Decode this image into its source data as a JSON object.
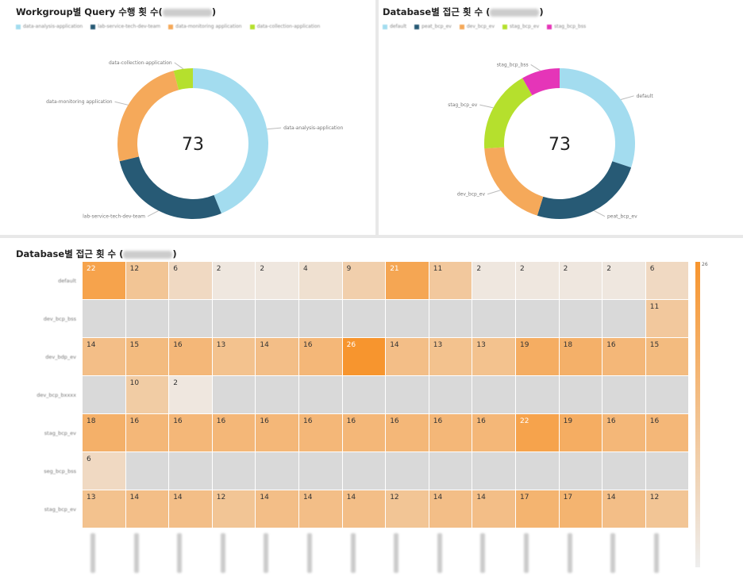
{
  "donut1": {
    "title": "Workgroup별 Query 수행 횟 수(",
    "title_end": ")",
    "total": "73",
    "chart_data": {
      "type": "pie",
      "labels": [
        "data-analysis-application",
        "lab-service-tech-dev-team",
        "data-monitoring application",
        "data-collection-application"
      ],
      "values": [
        32,
        20,
        18,
        3
      ],
      "colors": [
        "#a3dcef",
        "#275a75",
        "#f5a95a",
        "#b5e02d"
      ]
    }
  },
  "donut2": {
    "title": "Database별 접근 횟 수 (",
    "title_end": ")",
    "total": "73",
    "chart_data": {
      "type": "pie",
      "labels": [
        "default",
        "peat_bcp_ev",
        "dev_bcp_ev",
        "stag_bcp_ev",
        "stag_bcp_bss"
      ],
      "values": [
        22,
        18,
        14,
        13,
        6
      ],
      "colors": [
        "#a3dcef",
        "#275a75",
        "#f5a95a",
        "#b5e02d",
        "#e535b8"
      ]
    }
  },
  "heatmap": {
    "title": "Database별 접근 횟 수 (",
    "title_end": ")",
    "scale_max_label": "26",
    "chart_data": {
      "type": "heatmap",
      "rows": [
        "default",
        "dev_bcp_bss",
        "dev_bdp_ev",
        "dev_bcp_bxxxx",
        "stag_bcp_ev",
        "seg_bcp_bss",
        "stag_bcp_ev"
      ],
      "values": [
        [
          22,
          12,
          6,
          2,
          2,
          4,
          9,
          21,
          11,
          2,
          2,
          2,
          2,
          6
        ],
        [
          null,
          null,
          null,
          null,
          null,
          null,
          null,
          null,
          null,
          null,
          null,
          null,
          null,
          11
        ],
        [
          14,
          15,
          16,
          13,
          14,
          16,
          26,
          14,
          13,
          13,
          19,
          18,
          16,
          15
        ],
        [
          null,
          10,
          2,
          null,
          null,
          null,
          null,
          null,
          null,
          null,
          null,
          null,
          null,
          null
        ],
        [
          18,
          16,
          16,
          16,
          16,
          16,
          16,
          16,
          16,
          16,
          22,
          19,
          16,
          16
        ],
        [
          6,
          null,
          null,
          null,
          null,
          null,
          null,
          null,
          null,
          null,
          null,
          null,
          null,
          null
        ],
        [
          13,
          14,
          14,
          12,
          14,
          14,
          14,
          12,
          14,
          14,
          17,
          17,
          14,
          12
        ]
      ],
      "range": [
        0,
        26
      ],
      "min_color": "#eeeeee",
      "max_color": "#f7952e",
      "empty_color": "#d9d9d9"
    }
  }
}
